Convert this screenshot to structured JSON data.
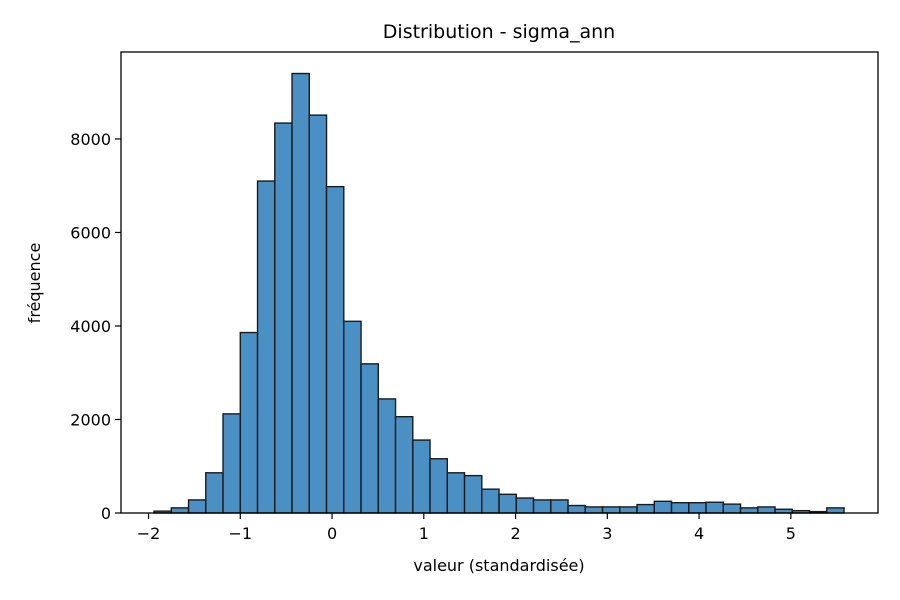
{
  "chart_data": {
    "type": "bar",
    "title": "Distribution - sigma_ann",
    "xlabel": "valeur (standardisée)",
    "ylabel": "fréquence",
    "xlim": [
      -2.3,
      5.95
    ],
    "ylim": [
      0,
      9860
    ],
    "xticks": [
      -2,
      -1,
      0,
      1,
      2,
      3,
      4,
      5
    ],
    "yticks": [
      0,
      2000,
      4000,
      6000,
      8000
    ],
    "grid": false,
    "bar_color": "#4a90c4",
    "edge_color": "#1a1a1a",
    "bin_edges": [
      -1.94,
      -1.752,
      -1.564,
      -1.376,
      -1.188,
      -1.0,
      -0.812,
      -0.624,
      -0.436,
      -0.248,
      -0.06,
      0.128,
      0.316,
      0.504,
      0.692,
      0.88,
      1.068,
      1.256,
      1.444,
      1.632,
      1.82,
      2.008,
      2.196,
      2.384,
      2.572,
      2.76,
      2.948,
      3.136,
      3.324,
      3.512,
      3.7,
      3.888,
      4.076,
      4.264,
      4.452,
      4.64,
      4.828,
      5.016,
      5.204,
      5.392,
      5.58
    ],
    "counts": [
      40,
      110,
      280,
      860,
      2120,
      3860,
      7100,
      8340,
      9400,
      8510,
      6980,
      4100,
      3190,
      2440,
      2060,
      1560,
      1160,
      860,
      800,
      510,
      400,
      320,
      280,
      280,
      160,
      130,
      130,
      130,
      180,
      250,
      220,
      220,
      230,
      190,
      110,
      130,
      80,
      50,
      30,
      110
    ]
  }
}
